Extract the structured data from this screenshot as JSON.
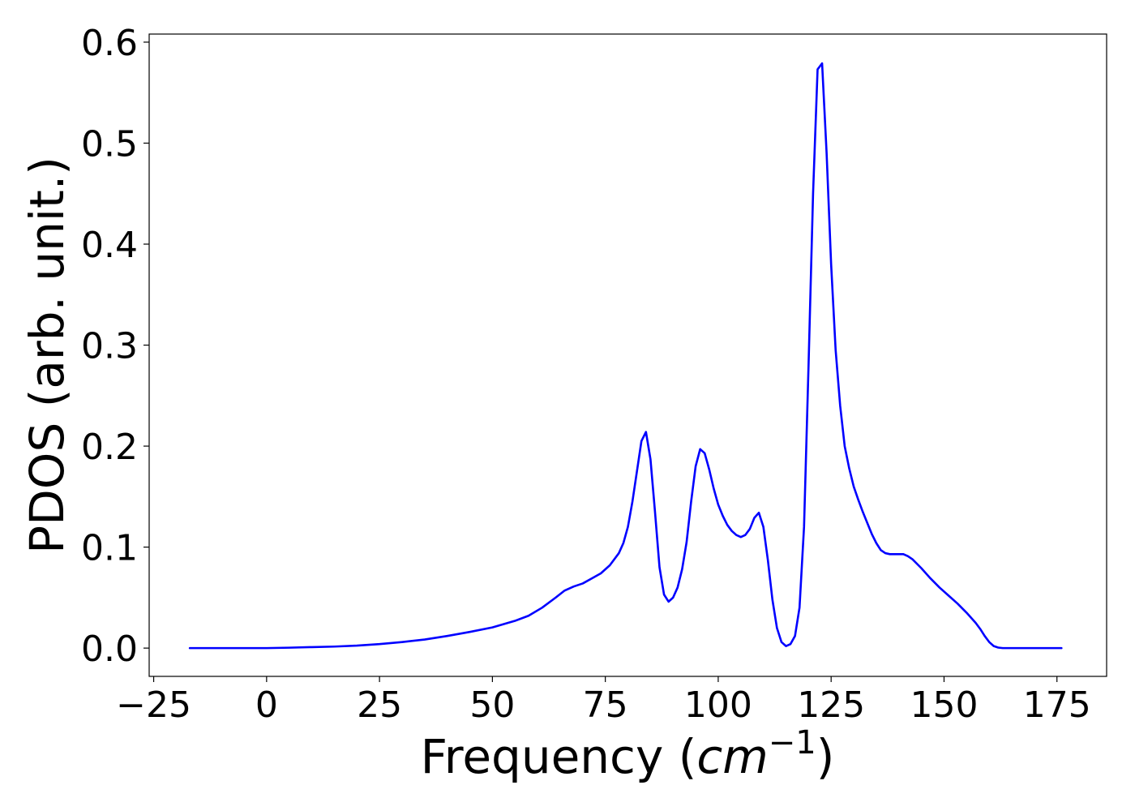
{
  "chart_data": {
    "type": "line",
    "title": "",
    "xlabel_text": "Frequency (",
    "xlabel_math_base": "cm",
    "xlabel_math_sup": "−1",
    "xlabel_close": ")",
    "ylabel": "PDOS (arb. unit.)",
    "xlim": [
      -26,
      186
    ],
    "ylim": [
      -0.028,
      0.608
    ],
    "xticks": [
      -25,
      0,
      25,
      50,
      75,
      100,
      125,
      150,
      175
    ],
    "xtick_labels": [
      "−25",
      "0",
      "25",
      "50",
      "75",
      "100",
      "125",
      "150",
      "175"
    ],
    "yticks": [
      0.0,
      0.1,
      0.2,
      0.3,
      0.4,
      0.5,
      0.6
    ],
    "ytick_labels": [
      "0.0",
      "0.1",
      "0.2",
      "0.3",
      "0.4",
      "0.5",
      "0.6"
    ],
    "grid": false,
    "legend": "none",
    "series": [
      {
        "color": "#0000ff",
        "x": [
          -17,
          -10,
          0,
          5,
          10,
          15,
          20,
          25,
          30,
          35,
          40,
          45,
          50,
          55,
          58,
          61,
          64,
          66,
          68,
          70,
          72,
          74,
          76,
          78,
          79,
          80,
          81,
          82,
          83,
          84,
          85,
          86,
          87,
          88,
          89,
          90,
          91,
          92,
          93,
          94,
          95,
          96,
          97,
          98,
          99,
          100,
          101,
          102,
          103,
          104,
          105,
          106,
          107,
          108,
          109,
          110,
          111,
          112,
          113,
          114,
          115,
          116,
          117,
          118,
          119,
          120,
          121,
          122,
          123,
          124,
          125,
          126,
          127,
          128,
          129,
          130,
          131,
          132,
          133,
          134,
          135,
          136,
          137,
          138,
          139,
          140,
          141,
          142,
          143,
          145,
          147,
          149,
          151,
          153,
          155,
          157,
          158,
          159,
          160,
          161,
          162,
          163,
          165,
          170,
          176
        ],
        "y": [
          0.0,
          0.0,
          0.0,
          0.0004,
          0.001,
          0.0015,
          0.0025,
          0.004,
          0.006,
          0.0085,
          0.012,
          0.016,
          0.0205,
          0.027,
          0.032,
          0.04,
          0.05,
          0.057,
          0.061,
          0.064,
          0.069,
          0.074,
          0.082,
          0.094,
          0.104,
          0.12,
          0.145,
          0.175,
          0.205,
          0.214,
          0.187,
          0.135,
          0.08,
          0.053,
          0.046,
          0.05,
          0.06,
          0.078,
          0.105,
          0.145,
          0.18,
          0.197,
          0.193,
          0.177,
          0.158,
          0.142,
          0.131,
          0.122,
          0.116,
          0.112,
          0.11,
          0.112,
          0.118,
          0.129,
          0.134,
          0.12,
          0.087,
          0.048,
          0.02,
          0.006,
          0.002,
          0.004,
          0.012,
          0.04,
          0.12,
          0.28,
          0.45,
          0.573,
          0.579,
          0.49,
          0.38,
          0.295,
          0.24,
          0.2,
          0.178,
          0.16,
          0.147,
          0.135,
          0.124,
          0.113,
          0.104,
          0.097,
          0.094,
          0.093,
          0.093,
          0.093,
          0.093,
          0.091,
          0.088,
          0.079,
          0.069,
          0.06,
          0.052,
          0.044,
          0.035,
          0.025,
          0.019,
          0.012,
          0.006,
          0.002,
          0.0005,
          0.0,
          0.0,
          0.0,
          0.0
        ]
      }
    ]
  }
}
